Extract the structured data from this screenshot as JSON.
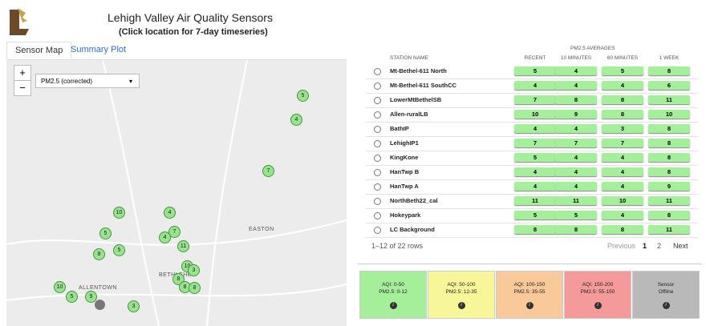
{
  "header": {
    "title": "Lehigh Valley Air Quality Sensors",
    "subtitle": "(Click location for 7-day timeseries)"
  },
  "tabs": [
    "Sensor Map",
    "Summary Plot"
  ],
  "map": {
    "zoom_in": "+",
    "zoom_out": "−",
    "dropdown": "PM2.5 (corrected)",
    "places": [
      "EASTON",
      "ALLENTOWN",
      "BETHLEHEM"
    ],
    "markers": [
      5,
      4,
      7,
      10,
      4,
      5,
      7,
      4,
      11,
      5,
      8,
      10,
      3,
      8,
      8,
      8,
      10,
      5,
      9,
      3
    ]
  },
  "table": {
    "group_header": "PM2.5 AVERAGES",
    "columns": [
      "STATION NAME",
      "RECENT",
      "10 MINUTES",
      "60 MINUTES",
      "1 WEEK"
    ],
    "rows": [
      [
        "Mt-Bethel-611 North",
        5,
        4,
        5,
        8
      ],
      [
        "Mt-Bethel-611 SouthCC",
        4,
        4,
        4,
        6
      ],
      [
        "LowerMtBethelSB",
        7,
        8,
        8,
        11
      ],
      [
        "Allen-ruralLB",
        10,
        9,
        8,
        10
      ],
      [
        "BathIP",
        4,
        4,
        3,
        8
      ],
      [
        "LehighIP1",
        7,
        7,
        7,
        8
      ],
      [
        "KingKone",
        5,
        4,
        4,
        8
      ],
      [
        "HanTwp B",
        4,
        4,
        4,
        8
      ],
      [
        "HanTwp A",
        4,
        4,
        4,
        9
      ],
      [
        "NorthBeth22_cal",
        11,
        11,
        10,
        11
      ],
      [
        "Hokeypark",
        5,
        5,
        4,
        8
      ],
      [
        "LC Background",
        8,
        8,
        8,
        11
      ]
    ]
  },
  "pagination": {
    "summary": "1–12 of 22 rows",
    "previous": "Previous",
    "pages": [
      "1",
      "2"
    ],
    "next": "Next"
  },
  "legend": [
    [
      "AQI: 0-50",
      "PM2.5: 0-12"
    ],
    [
      "AQI: 50-100",
      "PM2.5: 12-35"
    ],
    [
      "AQI: 100-150",
      "PM2.5: 35-55"
    ],
    [
      "AQI: 150-200",
      "PM2.5: 55-150"
    ],
    [
      "Sensor",
      "Offline"
    ]
  ]
}
